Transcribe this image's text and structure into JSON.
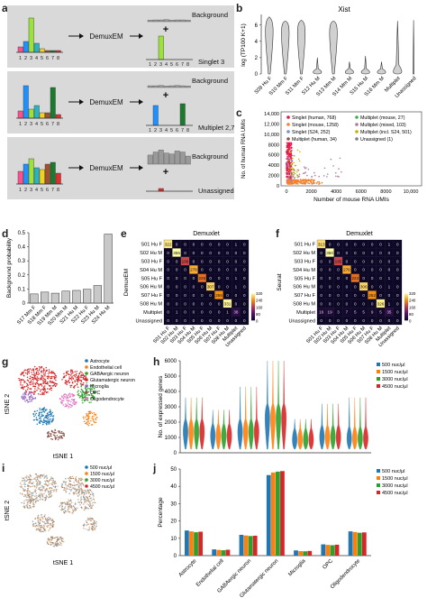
{
  "panels": {
    "a": {
      "letter": "a",
      "rows": [
        {
          "method": "DemuxEM",
          "top": "Background",
          "bottom": "Singlet 3",
          "plus": "+"
        },
        {
          "method": "DemuxEM",
          "top": "Background",
          "bottom": "Multiplet 2,7",
          "plus": "+"
        },
        {
          "method": "DemuxEM",
          "top": "Background",
          "bottom": "Unassigned",
          "plus": "+"
        }
      ],
      "ticks": [
        "1",
        "2",
        "3",
        "4",
        "5",
        "6",
        "7",
        "8"
      ]
    },
    "b": {
      "letter": "b",
      "title": "Xist",
      "ylabel": "log (TP100 K+1)",
      "yticks": [
        "0",
        "2",
        "4",
        "6"
      ],
      "categories": [
        "S09 Hu F",
        "S10 Mm F",
        "S11 Mm F",
        "S12 Hu M",
        "S13 Mm M",
        "S14 Mm M",
        "S15 Hu M",
        "S16 Mm M",
        "Multiplet",
        "Unassigned"
      ]
    },
    "c": {
      "letter": "c",
      "xlabel": "Number of mouse RNA UMIs",
      "ylabel": "No. of human RNA UMIs",
      "xticks": [
        "0",
        "2000",
        "4000",
        "6000",
        "8000",
        "10,000"
      ],
      "yticks": [
        "0",
        "2000",
        "4000",
        "6000",
        "8000",
        "10,000",
        "12,000",
        "14,000"
      ],
      "legend": [
        {
          "label": "Singlet (human, 768)",
          "color": "#e6194b"
        },
        {
          "label": "Multiplet (mouse, 27)",
          "color": "#3cb44b"
        },
        {
          "label": "Singlet (mouse, 1258)",
          "color": "#f58231"
        },
        {
          "label": "Multiplet (mixed, 103)",
          "color": "#b07aa1"
        },
        {
          "label": "Singlet (S24, 252)",
          "color": "#7b8ed6"
        },
        {
          "label": "Multiplet (incl. S24, 501)",
          "color": "#c9b100"
        },
        {
          "label": "Multiplet (human, 34)",
          "color": "#8c564b"
        },
        {
          "label": "Unassigned (1)",
          "color": "#7f7f7f"
        }
      ]
    },
    "d": {
      "letter": "d",
      "ylabel": "Background probability",
      "yticks": [
        "0",
        "0.1",
        "0.2",
        "0.3",
        "0.4",
        "0.5"
      ],
      "chart_data": {
        "type": "bar",
        "categories": [
          "S17 Mm F",
          "S18 Mm F",
          "S19 Mm M",
          "S20 Mm M",
          "S21 Hu M",
          "S22 Hu F",
          "S23 Hu M",
          "S24 Hu M"
        ],
        "values": [
          0.065,
          0.078,
          0.07,
          0.085,
          0.09,
          0.098,
          0.125,
          0.49
        ],
        "ylim": [
          0,
          0.5
        ]
      }
    },
    "e": {
      "letter": "e",
      "title": "Demuxlet",
      "ylabel": "DemuxEM",
      "rows": [
        "S01 Hu F",
        "S02 Hu M",
        "S03 Hu F",
        "S04 Hu M",
        "S05 Hu F",
        "S06 Hu M",
        "S07 Hu F",
        "S08 Hu M",
        "Multiplet",
        "Unassigned"
      ],
      "cols": [
        "S01 Hu F",
        "S02 Hu M",
        "S03 Hu F",
        "S04 Hu M",
        "S05 Hu F",
        "S06 Hu M",
        "S07 Hu F",
        "S08 Hu M",
        "Multiplet",
        "Unassigned"
      ],
      "matrix": [
        [
          "322",
          "0",
          "0",
          "0",
          "0",
          "0",
          "0",
          "0",
          "1",
          "0"
        ],
        [
          "0",
          "355",
          "0",
          "0",
          "0",
          "0",
          "0",
          "0",
          "0",
          "0"
        ],
        [
          "0",
          "0",
          "186",
          "0",
          "0",
          "0",
          "0",
          "0",
          "0",
          "0"
        ],
        [
          "0",
          "0",
          "0",
          "278",
          "0",
          "0",
          "0",
          "0",
          "0",
          "0"
        ],
        [
          "0",
          "0",
          "0",
          "0",
          "226",
          "0",
          "0",
          "0",
          "1",
          "0"
        ],
        [
          "0",
          "0",
          "0",
          "0",
          "0",
          "307",
          "0",
          "0",
          "1",
          "0"
        ],
        [
          "0",
          "0",
          "0",
          "0",
          "0",
          "0",
          "255",
          "0",
          "0",
          "0"
        ],
        [
          "0",
          "0",
          "0",
          "0",
          "0",
          "0",
          "0",
          "331",
          "0",
          "0"
        ],
        [
          "0",
          "1",
          "0",
          "0",
          "0",
          "0",
          "0",
          "1",
          "38",
          "0"
        ],
        [
          "0",
          "0",
          "0",
          "0",
          "0",
          "0",
          "0",
          "0",
          "0",
          "0"
        ]
      ],
      "scale": [
        "320",
        "240",
        "160",
        "80",
        "0"
      ]
    },
    "f": {
      "letter": "f",
      "title": "Demuxlet",
      "ylabel": "Seurat",
      "rows": [
        "S01 Hu F",
        "S02 Hu M",
        "S03 Hu F",
        "S04 Hu M",
        "S05 Hu F",
        "S06 Hu M",
        "S07 Hu F",
        "S08 Hu M",
        "Multiplet",
        "Unassigned"
      ],
      "cols": [
        "S01 Hu F",
        "S02 Hu M",
        "S03 Hu F",
        "S04 Hu M",
        "S05 Hu F",
        "S06 Hu M",
        "S07 Hu F",
        "S08 Hu M",
        "Multiplet",
        "Unassigned"
      ],
      "matrix": [
        [
          "313",
          "0",
          "0",
          "0",
          "0",
          "0",
          "0",
          "0",
          "1",
          "0"
        ],
        [
          "0",
          "350",
          "0",
          "0",
          "0",
          "0",
          "0",
          "0",
          "0",
          "0"
        ],
        [
          "0",
          "0",
          "185",
          "0",
          "0",
          "0",
          "0",
          "0",
          "0",
          "0"
        ],
        [
          "0",
          "0",
          "0",
          "276",
          "0",
          "0",
          "0",
          "0",
          "0",
          "0"
        ],
        [
          "0",
          "0",
          "0",
          "0",
          "224",
          "0",
          "0",
          "0",
          "1",
          "0"
        ],
        [
          "0",
          "0",
          "0",
          "0",
          "0",
          "306",
          "0",
          "0",
          "1",
          "0"
        ],
        [
          "0",
          "0",
          "0",
          "0",
          "0",
          "0",
          "252",
          "0",
          "0",
          "0"
        ],
        [
          "0",
          "0",
          "0",
          "0",
          "0",
          "0",
          "0",
          "326",
          "1",
          "0"
        ],
        [
          "16",
          "19",
          "3",
          "7",
          "5",
          "5",
          "9",
          "5",
          "35",
          "0"
        ],
        [
          "0",
          "0",
          "0",
          "0",
          "0",
          "0",
          "0",
          "0",
          "0",
          "0"
        ]
      ],
      "scale": [
        "320",
        "240",
        "160",
        "80",
        "0"
      ]
    },
    "g": {
      "letter": "g",
      "xlabel": "tSNE 1",
      "ylabel": "tSNE 2",
      "legend": [
        {
          "label": "Astrocyte",
          "color": "#1f77b4"
        },
        {
          "label": "Endothelial cell",
          "color": "#ff7f0e"
        },
        {
          "label": "GABAergic neuron",
          "color": "#2ca02c"
        },
        {
          "label": "Glutamatergic neuron",
          "color": "#d62728"
        },
        {
          "label": "Microglia",
          "color": "#9467bd"
        },
        {
          "label": "OPC",
          "color": "#8c564b"
        },
        {
          "label": "Oligodendrocyte",
          "color": "#e377c2"
        }
      ]
    },
    "h": {
      "letter": "h",
      "ylabel": "No. of expressed genes",
      "yticks": [
        "0",
        "1000",
        "2000",
        "3000",
        "4000",
        "5000",
        "6000"
      ],
      "legend": [
        {
          "label": "500 nuc/μl",
          "color": "#1f77b4"
        },
        {
          "label": "1500 nuc/μl",
          "color": "#ff7f0e"
        },
        {
          "label": "3000 nuc/μl",
          "color": "#2ca02c"
        },
        {
          "label": "4500 nuc/μl",
          "color": "#d62728"
        }
      ]
    },
    "i": {
      "letter": "i",
      "xlabel": "tSNE 1",
      "ylabel": "tSNE 2",
      "legend": [
        {
          "label": "500 nuc/μl",
          "color": "#1f77b4"
        },
        {
          "label": "1500 nuc/μl",
          "color": "#ff7f0e"
        },
        {
          "label": "3000 nuc/μl",
          "color": "#2ca02c"
        },
        {
          "label": "4500 nuc/μl",
          "color": "#d62728"
        }
      ]
    },
    "j": {
      "letter": "j",
      "ylabel": "Percentage",
      "yticks": [
        "0",
        "10",
        "20",
        "30",
        "40",
        "50"
      ],
      "chart_data": {
        "type": "bar",
        "categories": [
          "Astrocyte",
          "Endothelial cell",
          "GABAergic neuron",
          "Glutamatergic neuron",
          "Microglia",
          "OPC",
          "Oligodendrocyte"
        ],
        "series": [
          {
            "name": "500 nuc/μl",
            "values": [
              14.5,
              3.6,
              12.0,
              46.5,
              3.0,
              6.5,
              14.0
            ]
          },
          {
            "name": "1500 nuc/μl",
            "values": [
              14.0,
              3.3,
              11.6,
              48.0,
              2.6,
              6.2,
              13.6
            ]
          },
          {
            "name": "3000 nuc/μl",
            "values": [
              13.5,
              3.1,
              11.3,
              48.5,
              2.5,
              6.0,
              13.2
            ]
          },
          {
            "name": "4500 nuc/μl",
            "values": [
              13.8,
              3.4,
              11.5,
              48.8,
              2.7,
              6.3,
              13.4
            ]
          }
        ],
        "ylim": [
          0,
          50
        ]
      }
    }
  },
  "colors": {
    "panel_bg": "#d9d9d9",
    "bar_gray": "#c8c8c8",
    "series": [
      "#1f77b4",
      "#ff7f0e",
      "#2ca02c",
      "#d62728"
    ]
  }
}
